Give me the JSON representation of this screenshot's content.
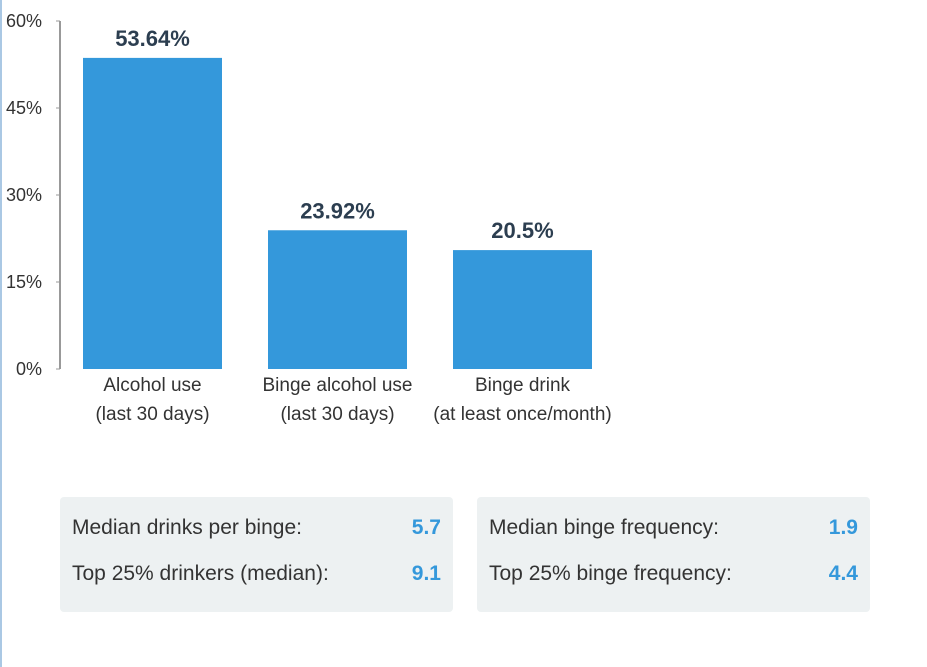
{
  "chart_data": {
    "type": "bar",
    "categories": [
      "Alcohol use\n(last 30 days)",
      "Binge alcohol use\n(last 30 days)",
      "Binge drink\n(at least once/month)"
    ],
    "values": [
      53.64,
      23.92,
      20.5
    ],
    "value_labels": [
      "53.64%",
      "23.92%",
      "20.5%"
    ],
    "color": "#3498db",
    "ylim": [
      0,
      60
    ],
    "yticks": [
      {
        "value": 0,
        "label": "0%"
      },
      {
        "value": 15,
        "label": "15%"
      },
      {
        "value": 30,
        "label": "30%"
      },
      {
        "value": 45,
        "label": "45%"
      },
      {
        "value": 60,
        "label": "60%"
      }
    ]
  },
  "stats": [
    [
      {
        "label": "Median drinks per binge:",
        "value": "5.7"
      },
      {
        "label": "Top 25% drinkers (median):",
        "value": "9.1"
      }
    ],
    [
      {
        "label": "Median binge frequency:",
        "value": "1.9"
      },
      {
        "label": "Top 25% binge frequency:",
        "value": "4.4"
      }
    ]
  ]
}
